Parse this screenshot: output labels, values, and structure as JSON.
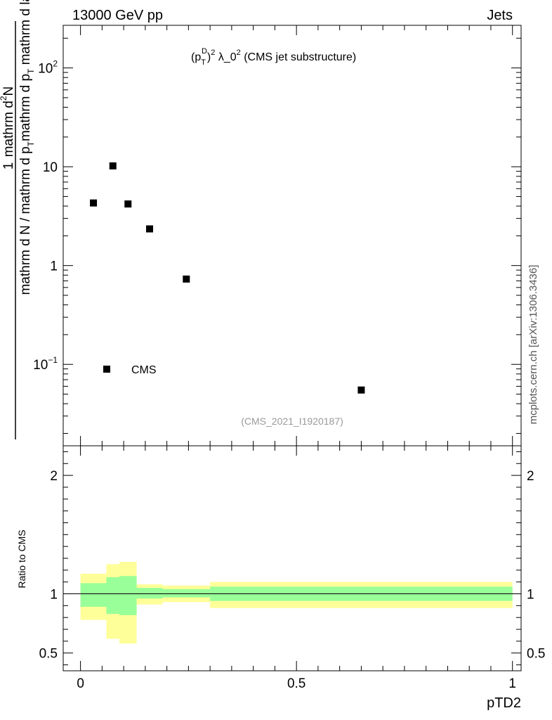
{
  "header": {
    "energy_label": "13000 GeV pp",
    "process_label": "Jets"
  },
  "side_label": "mcplots.cern.ch [arXiv:1306.3436]",
  "chart_data": [
    {
      "type": "scatter",
      "title": "(p_T^D)^2 λ_0^2 (CMS jet substructure)",
      "title_parts": {
        "p": "(p",
        "sub": "T",
        "sup": "D",
        "close": ")",
        "sup2": "2",
        "mid": " λ_0",
        "sup3": "2",
        "rest": " (CMS jet substructure)"
      },
      "ylabel": {
        "num": "1",
        "den_text": "mathrm d N / mathrm d p",
        "den_sub": "T",
        "num2_text": "mathrm d",
        "num2_sup": "2",
        "num2_text2": "N",
        "den2_text": "mathrm d p",
        "den2_sub": "T",
        "den2_text2": " mathrm d lambda"
      },
      "yscale": "log",
      "ylim": [
        0.015,
        270
      ],
      "xlim": [
        -0.04,
        1.02
      ],
      "yticks": [
        {
          "value": 0.1,
          "base": "10",
          "exp": "−1"
        },
        {
          "value": 1,
          "base": "1",
          "exp": ""
        },
        {
          "value": 10,
          "base": "10",
          "exp": ""
        },
        {
          "value": 100,
          "base": "10",
          "exp": "2"
        }
      ],
      "series": [
        {
          "name": "CMS",
          "marker": "square",
          "color": "#000000",
          "points": [
            {
              "x": 0.03,
              "y": 4.3
            },
            {
              "x": 0.075,
              "y": 10.2
            },
            {
              "x": 0.11,
              "y": 4.2
            },
            {
              "x": 0.16,
              "y": 2.35
            },
            {
              "x": 0.245,
              "y": 0.73
            },
            {
              "x": 0.65,
              "y": 0.055
            }
          ]
        }
      ],
      "legend": {
        "entry": "CMS",
        "placement": "lower-left"
      },
      "annotation": "(CMS_2021_I1920187)"
    },
    {
      "type": "area",
      "ylabel": "Ratio to CMS",
      "xlabel": "pTD2",
      "xlim": [
        -0.04,
        1.02
      ],
      "ylim": [
        0.35,
        2.25
      ],
      "yticks": [
        {
          "value": 0.5,
          "label": "0.5"
        },
        {
          "value": 1,
          "label": "1"
        },
        {
          "value": 2,
          "label": "2"
        }
      ],
      "xticks": [
        {
          "value": 0,
          "label": "0"
        },
        {
          "value": 0.5,
          "label": "0.5"
        },
        {
          "value": 1,
          "label": "1"
        }
      ],
      "reference_line": 1,
      "bins": [
        {
          "x0": 0.0,
          "x1": 0.06,
          "inner": [
            0.89,
            1.09
          ],
          "outer": [
            0.78,
            1.17
          ]
        },
        {
          "x0": 0.06,
          "x1": 0.09,
          "inner": [
            0.83,
            1.14
          ],
          "outer": [
            0.62,
            1.25
          ]
        },
        {
          "x0": 0.09,
          "x1": 0.13,
          "inner": [
            0.82,
            1.15
          ],
          "outer": [
            0.58,
            1.27
          ]
        },
        {
          "x0": 0.13,
          "x1": 0.19,
          "inner": [
            0.96,
            1.05
          ],
          "outer": [
            0.91,
            1.08
          ]
        },
        {
          "x0": 0.19,
          "x1": 0.3,
          "inner": [
            0.97,
            1.04
          ],
          "outer": [
            0.93,
            1.07
          ]
        },
        {
          "x0": 0.3,
          "x1": 1.0,
          "inner": [
            0.94,
            1.06
          ],
          "outer": [
            0.88,
            1.1
          ]
        }
      ],
      "colors": {
        "inner": "#99ff99",
        "outer": "#ffff99"
      }
    }
  ]
}
